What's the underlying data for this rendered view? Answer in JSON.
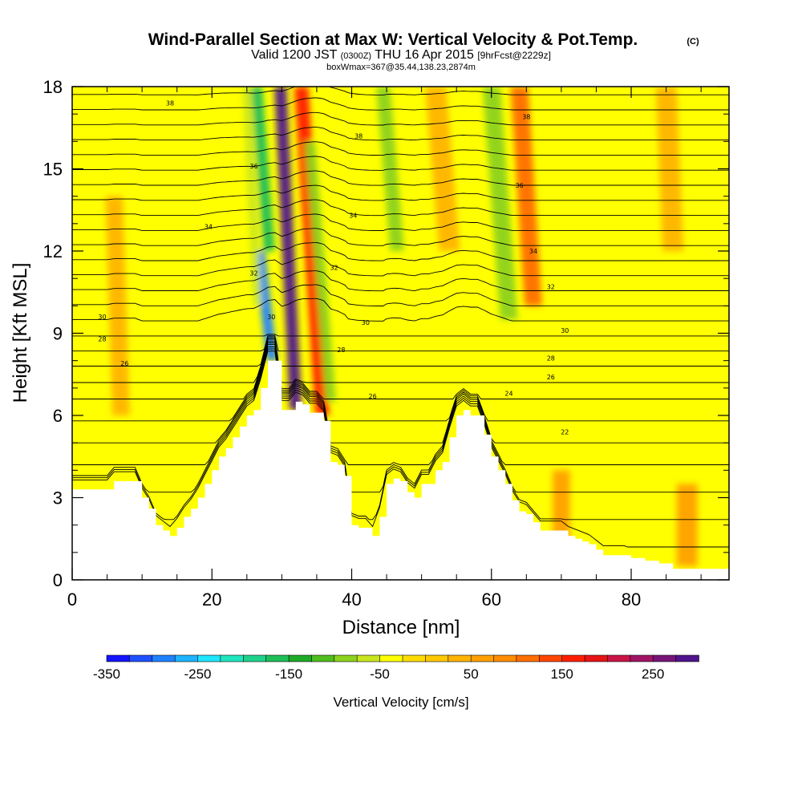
{
  "header": {
    "title": "Wind-Parallel Section at Max W: Vertical Velocity & Pot.Temp.",
    "copyright": "(C)",
    "valid_prefix": "Valid 1200 JST",
    "utc": "(0300Z)",
    "valid_date": "THU 16 Apr 2015",
    "forecast": "[9hrFcst@2229z]",
    "box_info": "boxWmax=367@35.44,138.23,2874m"
  },
  "chart_data": {
    "type": "heatmap",
    "xlabel": "Distance [nm]",
    "ylabel": "Height [Kft MSL]",
    "xlim": [
      0,
      94
    ],
    "ylim": [
      0,
      18
    ],
    "x_ticks": [
      0,
      20,
      40,
      60,
      80
    ],
    "y_ticks": [
      0,
      3,
      6,
      9,
      12,
      15,
      18
    ],
    "x_tick_labels": [
      "0",
      "20",
      "40",
      "60",
      "80"
    ],
    "y_tick_labels": [
      "0",
      "3",
      "6",
      "9",
      "12",
      "15",
      "18"
    ],
    "colorbar": {
      "label": "Vertical Velocity [cm/s]",
      "min": -350,
      "max": 300,
      "step": 25,
      "tick_values": [
        -350,
        -250,
        -150,
        -50,
        50,
        150,
        250
      ],
      "tick_labels": [
        "-350",
        "-250",
        "-150",
        "-50",
        "50",
        "150",
        "250"
      ],
      "colors": [
        "#1414ff",
        "#1e50ff",
        "#1e82ff",
        "#1eb4ff",
        "#1ee6ff",
        "#1ee6be",
        "#1ed28c",
        "#1ebe5a",
        "#1eaa28",
        "#50be1e",
        "#8cd21e",
        "#c8e61e",
        "#ffff00",
        "#ffdc00",
        "#ffc800",
        "#ffb400",
        "#ffa000",
        "#ff8c00",
        "#ff6e00",
        "#ff4600",
        "#ff1e00",
        "#e61414",
        "#c81446",
        "#a01464",
        "#781478",
        "#50148c"
      ]
    },
    "terrain": [
      [
        0,
        3.3
      ],
      [
        5,
        3.3
      ],
      [
        6,
        3.6
      ],
      [
        9,
        3.6
      ],
      [
        10,
        3.0
      ],
      [
        11,
        2.6
      ],
      [
        12,
        2.0
      ],
      [
        13,
        1.8
      ],
      [
        14,
        1.6
      ],
      [
        15,
        1.9
      ],
      [
        16,
        2.3
      ],
      [
        17,
        2.6
      ],
      [
        18,
        3.0
      ],
      [
        19,
        3.5
      ],
      [
        20,
        4.0
      ],
      [
        21,
        4.5
      ],
      [
        22,
        4.8
      ],
      [
        23,
        5.2
      ],
      [
        24,
        5.6
      ],
      [
        25,
        6.0
      ],
      [
        26,
        6.2
      ],
      [
        27,
        7.0
      ],
      [
        28,
        8.0
      ],
      [
        29,
        8.0
      ],
      [
        30,
        6.2
      ],
      [
        31,
        6.2
      ],
      [
        32,
        6.5
      ],
      [
        33,
        6.4
      ],
      [
        34,
        6.1
      ],
      [
        35,
        6.1
      ],
      [
        36,
        5.8
      ],
      [
        37,
        4.3
      ],
      [
        38,
        4.2
      ],
      [
        39,
        3.8
      ],
      [
        40,
        2.0
      ],
      [
        41,
        1.9
      ],
      [
        42,
        1.9
      ],
      [
        43,
        1.6
      ],
      [
        44,
        2.3
      ],
      [
        45,
        3.5
      ],
      [
        46,
        3.7
      ],
      [
        47,
        3.6
      ],
      [
        48,
        3.2
      ],
      [
        49,
        3.0
      ],
      [
        50,
        3.5
      ],
      [
        51,
        3.5
      ],
      [
        52,
        4.0
      ],
      [
        53,
        4.3
      ],
      [
        54,
        5.2
      ],
      [
        55,
        6.0
      ],
      [
        56,
        6.2
      ],
      [
        57,
        6.0
      ],
      [
        58,
        6.0
      ],
      [
        59,
        5.3
      ],
      [
        60,
        4.5
      ],
      [
        61,
        4.0
      ],
      [
        62,
        3.5
      ],
      [
        63,
        2.9
      ],
      [
        64,
        2.5
      ],
      [
        65,
        2.4
      ],
      [
        66,
        2.1
      ],
      [
        67,
        1.8
      ],
      [
        68,
        1.8
      ],
      [
        69,
        1.8
      ],
      [
        70,
        1.8
      ],
      [
        71,
        1.6
      ],
      [
        72,
        1.5
      ],
      [
        73,
        1.4
      ],
      [
        74,
        1.3
      ],
      [
        75,
        1.1
      ],
      [
        76,
        0.9
      ],
      [
        77,
        0.9
      ],
      [
        78,
        0.9
      ],
      [
        79,
        0.9
      ],
      [
        80,
        0.8
      ],
      [
        81,
        0.8
      ],
      [
        82,
        0.7
      ],
      [
        83,
        0.7
      ],
      [
        84,
        0.6
      ],
      [
        85,
        0.6
      ],
      [
        86,
        0.4
      ],
      [
        87,
        0.4
      ],
      [
        94,
        0.4
      ]
    ],
    "vertical_velocity_features": [
      {
        "x": 28.6,
        "w": 1.5,
        "value": -300,
        "top": 12.0,
        "bottom": 8.0,
        "tilt": -1.8
      },
      {
        "x": 28.2,
        "w": 1.6,
        "value": -175,
        "top": 18.0,
        "bottom": 12.0,
        "tilt": -1.8
      },
      {
        "x": 32.0,
        "w": 1.7,
        "value": 300,
        "top": 18.0,
        "bottom": 6.2,
        "tilt": -2.2
      },
      {
        "x": 35.8,
        "w": 2.0,
        "value": 160,
        "top": 18.0,
        "bottom": 6.0,
        "tilt": -3.0
      },
      {
        "x": 37.0,
        "w": 1.5,
        "value": -100,
        "top": 16.0,
        "bottom": 6.5,
        "tilt": -3.0
      },
      {
        "x": 26.5,
        "w": 1.2,
        "value": -75,
        "top": 18.0,
        "bottom": 10.0,
        "tilt": -1.5
      },
      {
        "x": 46.5,
        "w": 2.0,
        "value": -100,
        "top": 18.0,
        "bottom": 12.0,
        "tilt": -2.0
      },
      {
        "x": 62.5,
        "w": 2.5,
        "value": -100,
        "top": 18.0,
        "bottom": 9.5,
        "tilt": -2.5
      },
      {
        "x": 66.0,
        "w": 2.5,
        "value": 110,
        "top": 18.0,
        "bottom": 10.0,
        "tilt": -2.0
      },
      {
        "x": 54.0,
        "w": 3.0,
        "value": 30,
        "top": 18.0,
        "bottom": 12.0,
        "tilt": -2.0
      },
      {
        "x": 86.0,
        "w": 3.0,
        "value": 30,
        "top": 18.0,
        "bottom": 12.0,
        "tilt": -1.0
      },
      {
        "x": 7.0,
        "w": 2.5,
        "value": 30,
        "top": 14.0,
        "bottom": 6.0,
        "tilt": -1.0
      },
      {
        "x": 70.0,
        "w": 2.5,
        "value": 60,
        "top": 4.0,
        "bottom": 0.5,
        "tilt": 0.0
      },
      {
        "x": 88.0,
        "w": 3.0,
        "value": 60,
        "top": 3.5,
        "bottom": 0.5,
        "tilt": 0.0
      }
    ],
    "theta_contour_labels": [
      {
        "x": 14,
        "y": 17.4,
        "text": "38"
      },
      {
        "x": 26,
        "y": 15.1,
        "text": "36"
      },
      {
        "x": 19.5,
        "y": 12.9,
        "text": "34"
      },
      {
        "x": 26,
        "y": 11.2,
        "text": "32"
      },
      {
        "x": 4.3,
        "y": 9.6,
        "text": "30"
      },
      {
        "x": 4.3,
        "y": 8.8,
        "text": "28"
      },
      {
        "x": 7.5,
        "y": 7.9,
        "text": "26"
      },
      {
        "x": 28.5,
        "y": 9.6,
        "text": "30"
      },
      {
        "x": 41,
        "y": 16.2,
        "text": "38"
      },
      {
        "x": 40.2,
        "y": 13.3,
        "text": "34"
      },
      {
        "x": 37.5,
        "y": 11.4,
        "text": "32"
      },
      {
        "x": 42,
        "y": 9.4,
        "text": "30"
      },
      {
        "x": 38.5,
        "y": 8.4,
        "text": "28"
      },
      {
        "x": 43,
        "y": 6.7,
        "text": "26"
      },
      {
        "x": 65,
        "y": 16.9,
        "text": "38"
      },
      {
        "x": 64,
        "y": 14.4,
        "text": "36"
      },
      {
        "x": 66,
        "y": 12.0,
        "text": "34"
      },
      {
        "x": 68.5,
        "y": 10.7,
        "text": "32"
      },
      {
        "x": 70.5,
        "y": 9.1,
        "text": "30"
      },
      {
        "x": 68.5,
        "y": 8.1,
        "text": "28"
      },
      {
        "x": 68.5,
        "y": 7.4,
        "text": "26"
      },
      {
        "x": 62.5,
        "y": 6.8,
        "text": "24"
      },
      {
        "x": 70.5,
        "y": 5.4,
        "text": "22"
      }
    ]
  }
}
